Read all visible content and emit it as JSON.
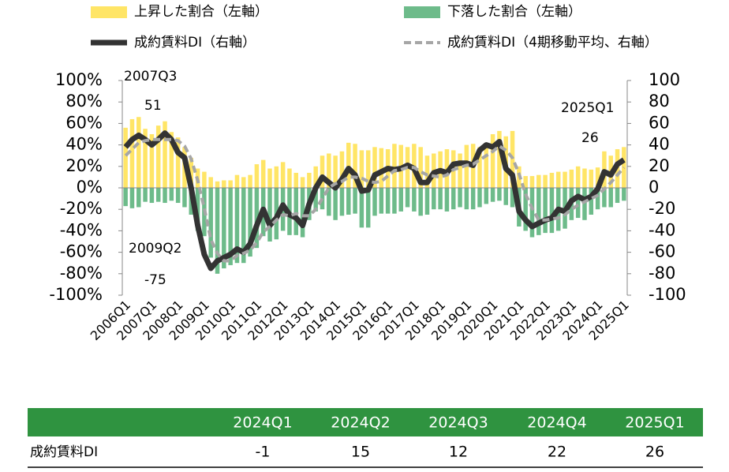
{
  "chart_data": {
    "type": "bar",
    "categories": [
      "2006Q1",
      null,
      null,
      null,
      "2007Q1",
      null,
      null,
      null,
      "2008Q1",
      null,
      null,
      null,
      "2009Q1",
      null,
      null,
      null,
      "2010Q1",
      null,
      null,
      null,
      "2011Q1",
      null,
      null,
      null,
      "2012Q1",
      null,
      null,
      null,
      "2013Q1",
      null,
      null,
      null,
      "2014Q1",
      null,
      null,
      null,
      "2015Q1",
      null,
      null,
      null,
      "2016Q1",
      null,
      null,
      null,
      "2017Q1",
      null,
      null,
      null,
      "2018Q1",
      null,
      null,
      null,
      "2019Q1",
      null,
      null,
      null,
      "2020Q1",
      null,
      null,
      null,
      "2021Q1",
      null,
      null,
      null,
      "2022Q1",
      null,
      null,
      null,
      "2023Q1",
      null,
      null,
      null,
      "2024Q1",
      null,
      null,
      null,
      "2025Q1"
    ],
    "series": [
      {
        "name": "上昇した割合（左軸）",
        "type": "bar",
        "color": "#ffe566",
        "values": [
          56,
          64,
          66,
          55,
          50,
          58,
          62,
          52,
          47,
          38,
          28,
          18,
          15,
          10,
          6,
          7,
          7,
          12,
          10,
          12,
          22,
          26,
          18,
          20,
          24,
          18,
          14,
          10,
          14,
          20,
          30,
          32,
          30,
          34,
          42,
          41,
          35,
          35,
          38,
          37,
          36,
          41,
          40,
          38,
          41,
          38,
          30,
          32,
          34,
          36,
          35,
          32,
          40,
          41,
          38,
          39,
          50,
          53,
          48,
          53,
          20,
          11,
          11,
          12,
          12,
          14,
          15,
          15,
          17,
          20,
          18,
          17,
          19,
          34,
          30,
          36,
          38
        ]
      },
      {
        "name": "下落した割合（左軸）",
        "type": "bar",
        "color": "#6dbb8a",
        "values": [
          -17,
          -19,
          -18,
          -13,
          -14,
          -13,
          -14,
          -12,
          -14,
          -18,
          -25,
          -40,
          -45,
          -65,
          -80,
          -75,
          -72,
          -70,
          -70,
          -64,
          -56,
          -45,
          -50,
          -48,
          -40,
          -44,
          -44,
          -46,
          -30,
          -22,
          -20,
          -26,
          -30,
          -26,
          -25,
          -24,
          -37,
          -37,
          -26,
          -24,
          -24,
          -24,
          -22,
          -18,
          -22,
          -26,
          -25,
          -20,
          -20,
          -22,
          -20,
          -18,
          -20,
          -20,
          -18,
          -15,
          -13,
          -12,
          -16,
          -18,
          -36,
          -40,
          -46,
          -44,
          -42,
          -42,
          -40,
          -38,
          -30,
          -28,
          -30,
          -25,
          -20,
          -18,
          -18,
          -14,
          -12
        ]
      },
      {
        "name": "成約賃料DI（右軸）",
        "type": "line",
        "axis": "y2",
        "color": "#333333",
        "dashed": false,
        "values": [
          38,
          45,
          49,
          45,
          40,
          45,
          51,
          45,
          33,
          28,
          0,
          -35,
          -62,
          -75,
          -68,
          -65,
          -62,
          -57,
          -60,
          -52,
          -35,
          -20,
          -35,
          -28,
          -16,
          -25,
          -28,
          -35,
          -15,
          0,
          10,
          5,
          0,
          8,
          18,
          12,
          -3,
          -2,
          12,
          15,
          18,
          17,
          18,
          21,
          18,
          5,
          5,
          14,
          16,
          14,
          22,
          23,
          23,
          21,
          35,
          40,
          38,
          43,
          18,
          12,
          -22,
          -30,
          -36,
          -33,
          -30,
          -28,
          -20,
          -22,
          -12,
          -8,
          -11,
          -8,
          -1,
          15,
          12,
          22,
          26
        ]
      },
      {
        "name": "成約賃料DI（4期移動平均、右軸）",
        "type": "line",
        "axis": "y2",
        "color": "#a6a6a6",
        "dashed": true,
        "values": [
          30,
          36,
          42,
          44,
          45,
          45,
          45,
          45,
          44,
          39,
          27,
          7,
          -19,
          -48,
          -61,
          -68,
          -68,
          -63,
          -61,
          -58,
          -51,
          -41,
          -36,
          -30,
          -25,
          -26,
          -24,
          -26,
          -26,
          -20,
          -10,
          0,
          4,
          6,
          10,
          10,
          9,
          6,
          5,
          6,
          11,
          16,
          17,
          19,
          19,
          15,
          12,
          11,
          10,
          12,
          17,
          19,
          21,
          22,
          26,
          30,
          34,
          39,
          35,
          28,
          13,
          -6,
          -19,
          -30,
          -30,
          -29,
          -28,
          -25,
          -20,
          -16,
          -13,
          -10,
          -7,
          -1,
          5,
          12,
          19
        ]
      }
    ],
    "ylim": [
      -100,
      100
    ],
    "yticks": [
      {
        "value": -100,
        "label": "-100%"
      },
      {
        "value": -80,
        "label": "-80%"
      },
      {
        "value": -60,
        "label": "-60%"
      },
      {
        "value": -40,
        "label": "-40%"
      },
      {
        "value": -20,
        "label": "-20%"
      },
      {
        "value": 0,
        "label": "0%"
      },
      {
        "value": 20,
        "label": "20%"
      },
      {
        "value": 40,
        "label": "40%"
      },
      {
        "value": 60,
        "label": "60%"
      },
      {
        "value": 80,
        "label": "80%"
      },
      {
        "value": 100,
        "label": "100%"
      }
    ],
    "y2lim": [
      -100,
      100
    ],
    "y2ticks": [
      -100,
      -80,
      -60,
      -40,
      -20,
      0,
      20,
      40,
      60,
      80,
      100
    ],
    "grid": false,
    "annotations": [
      "2007Q3",
      "51",
      "2009Q2",
      "-75",
      "2025Q1",
      "26"
    ]
  },
  "table": {
    "header": [
      "",
      "2024Q1",
      "2024Q2",
      "2024Q3",
      "2024Q4",
      "2025Q1"
    ],
    "rows": [
      [
        "成約賃料DI",
        "-1",
        "15",
        "12",
        "22",
        "26"
      ]
    ]
  }
}
